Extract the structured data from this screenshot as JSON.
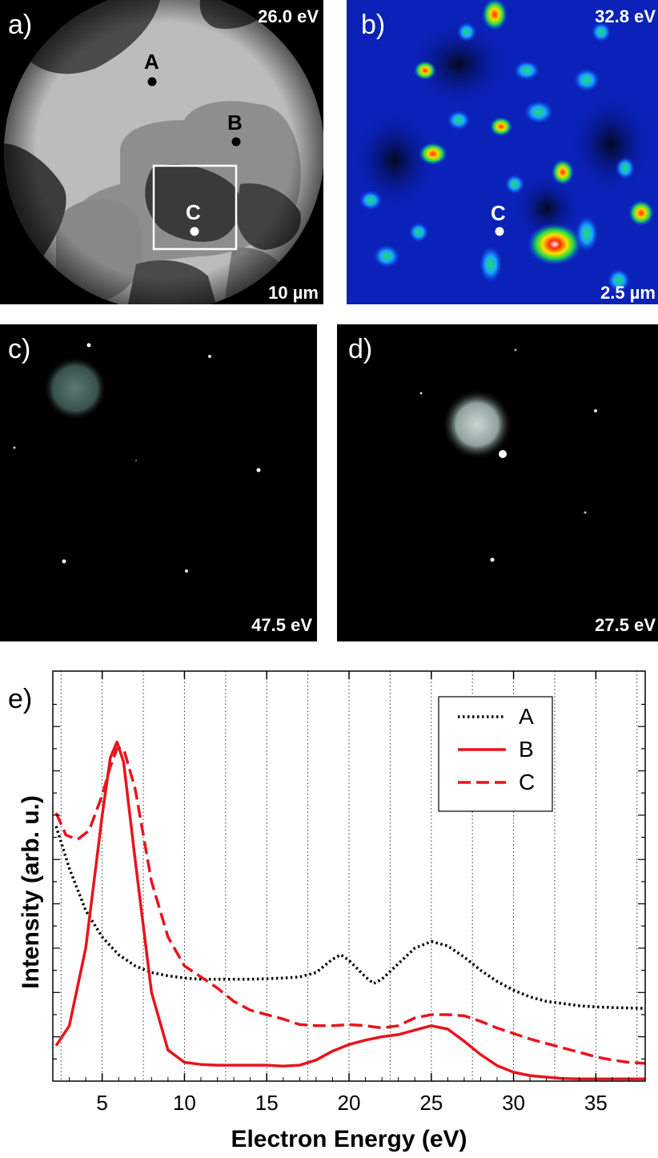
{
  "panel_a": {
    "label": "a)",
    "energy": "26.0 eV",
    "scale": "10 µm",
    "points": [
      {
        "label": "A",
        "color": "#000000"
      },
      {
        "label": "B",
        "color": "#000000"
      },
      {
        "label": "C",
        "color": "#ffffff"
      }
    ]
  },
  "panel_b": {
    "label": "b)",
    "energy": "32.8 eV",
    "scale": "2.5 µm",
    "point_label": "C"
  },
  "panel_c": {
    "label": "c)",
    "energy": "47.5 eV"
  },
  "panel_d": {
    "label": "d)",
    "energy": "27.5 eV"
  },
  "panel_e": {
    "label": "e)"
  },
  "chart_data": {
    "type": "line",
    "title": "",
    "xlabel": "Electron Energy (eV)",
    "ylabel": "Intensity (arb. u.)",
    "xlim": [
      2,
      38
    ],
    "ylim": [
      0,
      18.5
    ],
    "xticks": [
      5,
      10,
      15,
      20,
      25,
      30,
      35
    ],
    "x_minor_gridlines": [
      2.5,
      7.5,
      12.5,
      17.5,
      22.5,
      27.5,
      32.5,
      37.5
    ],
    "grid": "vertical dotted",
    "legend_position": "top-right",
    "series": [
      {
        "name": "A",
        "color": "#000000",
        "style": "dotted",
        "x": [
          2.2,
          3,
          4,
          5,
          6,
          7,
          8,
          9,
          10,
          11,
          12,
          13,
          14,
          15,
          16,
          17,
          18,
          19,
          19.5,
          20,
          21,
          21.5,
          22,
          23,
          24,
          25,
          26,
          27,
          28,
          29,
          30,
          31,
          32,
          33,
          34,
          35,
          36,
          37,
          38
        ],
        "y": [
          11.5,
          9.6,
          7.7,
          6.5,
          5.7,
          5.2,
          4.9,
          4.75,
          4.65,
          4.6,
          4.6,
          4.6,
          4.6,
          4.62,
          4.65,
          4.7,
          4.9,
          5.5,
          5.7,
          5.45,
          4.7,
          4.4,
          4.6,
          5.3,
          6.0,
          6.3,
          6.1,
          5.6,
          5.0,
          4.5,
          4.1,
          3.8,
          3.6,
          3.5,
          3.4,
          3.35,
          3.32,
          3.3,
          3.28
        ]
      },
      {
        "name": "B",
        "color": "#e8141c",
        "style": "solid",
        "x": [
          2.2,
          3,
          4,
          5,
          5.5,
          5.9,
          6.3,
          7,
          8,
          9,
          10,
          11,
          12,
          13,
          14,
          15,
          16,
          17,
          18,
          19,
          20,
          21,
          22,
          23,
          24,
          25,
          26,
          27,
          28,
          29,
          30,
          31,
          32,
          33,
          34,
          35,
          36,
          37,
          38
        ],
        "y": [
          1.6,
          2.5,
          6.0,
          12.0,
          14.6,
          15.3,
          14.4,
          10.0,
          4.0,
          1.4,
          0.85,
          0.75,
          0.72,
          0.72,
          0.72,
          0.72,
          0.68,
          0.72,
          0.95,
          1.35,
          1.65,
          1.85,
          2.0,
          2.1,
          2.3,
          2.5,
          2.35,
          1.8,
          1.2,
          0.7,
          0.4,
          0.25,
          0.18,
          0.12,
          0.1,
          0.1,
          0.1,
          0.1,
          0.1
        ]
      },
      {
        "name": "C",
        "color": "#e8141c",
        "style": "dashed",
        "x": [
          2.2,
          2.8,
          3.5,
          4.2,
          5,
          5.5,
          5.9,
          6.3,
          7,
          8,
          9,
          10,
          11,
          12,
          13,
          14,
          15,
          16,
          17,
          18,
          19,
          20,
          21,
          22,
          23,
          24,
          25,
          26,
          27,
          28,
          29,
          30,
          31,
          32,
          33,
          34,
          35,
          36,
          37,
          38
        ],
        "y": [
          12.1,
          11.1,
          10.9,
          11.3,
          12.9,
          14.2,
          15.0,
          15.0,
          13.2,
          9.0,
          6.5,
          5.2,
          4.7,
          4.2,
          3.6,
          3.2,
          3.0,
          2.8,
          2.55,
          2.5,
          2.5,
          2.55,
          2.5,
          2.4,
          2.5,
          2.85,
          3.0,
          3.0,
          2.95,
          2.7,
          2.4,
          2.15,
          1.9,
          1.7,
          1.5,
          1.3,
          1.1,
          0.95,
          0.85,
          0.8
        ]
      }
    ]
  }
}
